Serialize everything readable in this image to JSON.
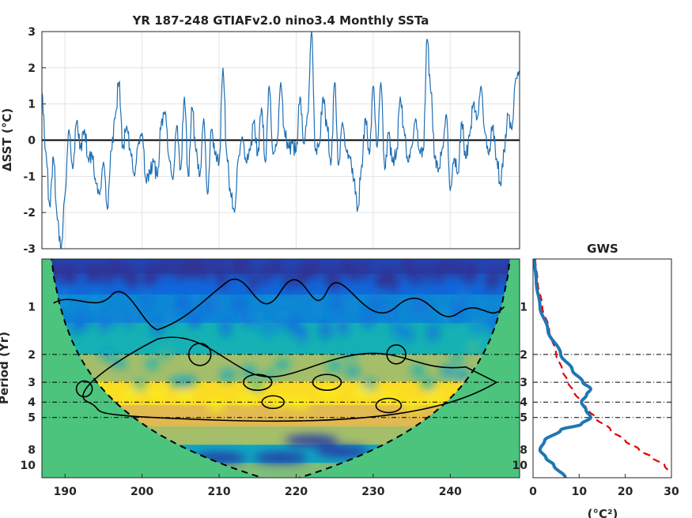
{
  "chart_data": [
    {
      "type": "line",
      "title": "YR 187-248 GTIAFv2.0 nino3.4 Monthly SSTa",
      "ylabel": "ΔSST (°C)",
      "xlim": [
        187,
        249
      ],
      "ylim": [
        -3,
        3
      ],
      "yticks": [
        -3,
        -2,
        -1,
        0,
        1,
        2,
        3
      ],
      "grid": true,
      "zero_line": true,
      "series": [
        {
          "x": [
            187.0,
            187.5,
            188.0,
            188.5,
            189.0,
            189.5,
            190.0,
            190.5,
            191.0,
            191.5,
            192.0,
            192.5,
            193.0,
            193.5,
            194.0,
            194.5,
            195.0,
            195.5,
            196.0,
            196.5,
            197.0,
            197.5,
            198.0,
            198.5,
            199.0,
            199.5,
            200.0,
            200.5,
            201.0,
            201.5,
            202.0,
            202.5,
            203.0,
            203.5,
            204.0,
            204.5,
            205.0,
            205.5,
            206.0,
            206.5,
            207.0,
            207.5,
            208.0,
            208.5,
            209.0,
            209.5,
            210.0,
            210.5,
            211.0,
            211.5,
            212.0,
            212.5,
            213.0,
            213.5,
            214.0,
            214.5,
            215.0,
            215.5,
            216.0,
            216.5,
            217.0,
            217.5,
            218.0,
            218.5,
            219.0,
            219.5,
            220.0,
            220.5,
            221.0,
            221.5,
            222.0,
            222.5,
            223.0,
            223.5,
            224.0,
            224.5,
            225.0,
            225.5,
            226.0,
            226.5,
            227.0,
            227.5,
            228.0,
            228.5,
            229.0,
            229.5,
            230.0,
            230.5,
            231.0,
            231.5,
            232.0,
            232.5,
            233.0,
            233.5,
            234.0,
            234.5,
            235.0,
            235.5,
            236.0,
            236.5,
            237.0,
            237.5,
            238.0,
            238.5,
            239.0,
            239.5,
            240.0,
            240.5,
            241.0,
            241.5,
            242.0,
            242.5,
            243.0,
            243.5,
            244.0,
            244.5,
            245.0,
            245.5,
            246.0,
            246.5,
            247.0,
            247.5,
            248.0,
            248.5,
            249.0
          ],
          "values": [
            1.3,
            -0.3,
            -1.8,
            -0.5,
            -2.2,
            -3.0,
            -1.5,
            0.3,
            -0.8,
            0.5,
            -0.2,
            0.3,
            -0.5,
            -0.4,
            -1.2,
            -1.5,
            -0.6,
            -1.9,
            -0.3,
            0.6,
            1.6,
            -0.2,
            0.4,
            -0.3,
            -1.0,
            -0.1,
            0.2,
            -1.1,
            -0.9,
            -0.6,
            -1.0,
            0.5,
            0.8,
            -0.5,
            -1.1,
            0.4,
            -0.8,
            1.2,
            -1.0,
            0.9,
            -0.3,
            -1.0,
            0.6,
            -1.5,
            0.3,
            -0.4,
            -0.6,
            2.0,
            -0.4,
            -1.5,
            -2.0,
            -0.5,
            0.1,
            -0.6,
            -0.3,
            0.5,
            -0.4,
            0.9,
            -0.6,
            1.5,
            -0.4,
            -0.1,
            1.6,
            0.2,
            -0.2,
            -0.1,
            -0.3,
            1.2,
            -0.1,
            0.7,
            3.0,
            -0.3,
            -0.1,
            1.2,
            0.4,
            -0.7,
            1.6,
            -0.7,
            0.5,
            -0.3,
            -0.5,
            -1.1,
            -1.9,
            -0.7,
            0.6,
            -0.4,
            1.5,
            -0.2,
            1.6,
            -0.8,
            0.2,
            -0.6,
            -0.4,
            1.2,
            0.3,
            -0.6,
            -0.2,
            0.6,
            -0.3,
            -0.3,
            2.8,
            1.3,
            -0.5,
            -0.8,
            -0.2,
            0.7,
            -1.4,
            -0.5,
            -0.9,
            0.5,
            -0.5,
            0.1,
            1.0,
            0.6,
            1.5,
            0.2,
            -0.4,
            0.4,
            -0.5,
            -1.2,
            -0.3,
            0.7,
            0.3,
            1.7,
            1.9
          ]
        }
      ]
    },
    {
      "type": "heatmap",
      "ylabel": "Period (Yr)",
      "xlim": [
        187,
        249
      ],
      "xticks": [
        190,
        200,
        210,
        220,
        230,
        240
      ],
      "ylim": [
        0.5,
        12
      ],
      "yscale": "log2",
      "yticks": [
        1,
        2,
        3,
        4,
        5,
        8,
        10
      ],
      "reference_periods": [
        2,
        3,
        4,
        5
      ],
      "colormap": "parula",
      "coi_fill": "#4cc47e",
      "bands": [
        {
          "period": 0.55,
          "power": 0.08
        },
        {
          "period": 0.7,
          "power": 0.2
        },
        {
          "period": 1.0,
          "power": 0.35
        },
        {
          "period": 1.6,
          "power": 0.55
        },
        {
          "period": 2.5,
          "power": 0.75
        },
        {
          "period": 3.5,
          "power": 0.95
        },
        {
          "period": 5.0,
          "power": 0.85
        },
        {
          "period": 6.5,
          "power": 0.75
        },
        {
          "period": 8.5,
          "power": 0.5
        },
        {
          "period": 11,
          "power": 0.7
        }
      ]
    },
    {
      "type": "line",
      "title": "GWS",
      "xlabel": "(°C²)",
      "xlim": [
        0,
        30
      ],
      "xticks": [
        0,
        10,
        20,
        30
      ],
      "series": [
        {
          "period": [
            0.5,
            0.7,
            1.0,
            1.4,
            2.0,
            2.5,
            3.0,
            3.3,
            3.6,
            4.0,
            4.5,
            5.0,
            5.5,
            6.0,
            7.0,
            8.0,
            9.0,
            10.0,
            12.0
          ],
          "values": [
            0.3,
            0.7,
            1.5,
            3.2,
            6.0,
            8.5,
            10.8,
            12.5,
            11.6,
            10.5,
            11.5,
            12.5,
            10.5,
            6.0,
            2.5,
            1.5,
            2.8,
            4.5,
            7.0
          ],
          "color": "#1f77b4"
        },
        {
          "period": [
            0.5,
            0.7,
            1.0,
            1.4,
            2.0,
            2.5,
            3.0,
            3.5,
            4.0,
            4.5,
            5.0,
            6.0,
            7.0,
            8.0,
            9.0,
            10.0,
            12.0
          ],
          "values": [
            0.5,
            1.0,
            2.0,
            3.5,
            5.0,
            6.3,
            7.6,
            9.0,
            10.5,
            12.0,
            13.5,
            16.8,
            20.0,
            23.0,
            26.0,
            28.5,
            31.0
          ],
          "color": "#e00000",
          "dashed": true
        }
      ]
    }
  ]
}
